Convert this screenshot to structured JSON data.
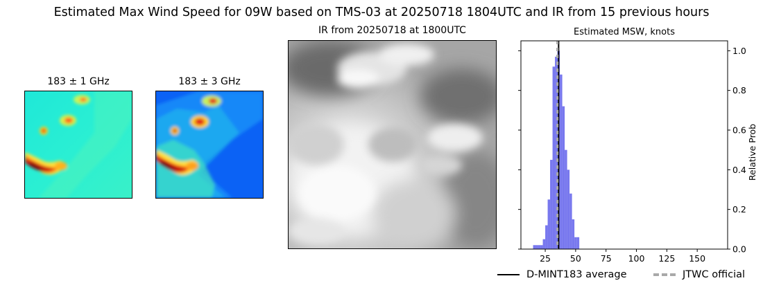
{
  "figure": {
    "title": "Estimated Max Wind Speed for 09W based on TMS-03 at 20250718 1804UTC and IR from 15 previous hours"
  },
  "panels": {
    "mw1": {
      "title": "183 ± 1 GHz"
    },
    "mw2": {
      "title": "183 ± 3 GHz"
    },
    "ir": {
      "title": "IR from 20250718 at 1800UTC"
    }
  },
  "chart_data": {
    "type": "bar",
    "title": "Estimated MSW, knots",
    "xlabel": "",
    "ylabel": "Relative Prob",
    "xlim": [
      5,
      175
    ],
    "ylim": [
      0,
      1.05
    ],
    "x_ticks": [
      25,
      50,
      75,
      100,
      125,
      150
    ],
    "y_ticks": [
      0.0,
      0.2,
      0.4,
      0.6,
      0.8,
      1.0
    ],
    "y_tick_labels": [
      "0.0",
      "0.2",
      "0.4",
      "0.6",
      "0.8",
      "1.0"
    ],
    "y_axis_side": "right",
    "grid": false,
    "legend_position": "below",
    "bin_width": 2,
    "bins": [
      {
        "x0": 15,
        "value": 0.02
      },
      {
        "x0": 17,
        "value": 0.02
      },
      {
        "x0": 19,
        "value": 0.02
      },
      {
        "x0": 21,
        "value": 0.02
      },
      {
        "x0": 23,
        "value": 0.05
      },
      {
        "x0": 25,
        "value": 0.12
      },
      {
        "x0": 27,
        "value": 0.25
      },
      {
        "x0": 29,
        "value": 0.45
      },
      {
        "x0": 31,
        "value": 0.92
      },
      {
        "x0": 33,
        "value": 0.97
      },
      {
        "x0": 35,
        "value": 1.0
      },
      {
        "x0": 37,
        "value": 0.88
      },
      {
        "x0": 39,
        "value": 0.72
      },
      {
        "x0": 41,
        "value": 0.5
      },
      {
        "x0": 43,
        "value": 0.4
      },
      {
        "x0": 45,
        "value": 0.28
      },
      {
        "x0": 47,
        "value": 0.15
      },
      {
        "x0": 49,
        "value": 0.06
      },
      {
        "x0": 51,
        "value": 0.06
      }
    ],
    "lines": [
      {
        "name": "D-MINT183 average",
        "x": 36,
        "style": "solid",
        "color": "#000000"
      },
      {
        "name": "JTWC official",
        "x": 35,
        "style": "dashed",
        "color": "#a9a9a9"
      }
    ],
    "bar_color": "#7878ee"
  }
}
